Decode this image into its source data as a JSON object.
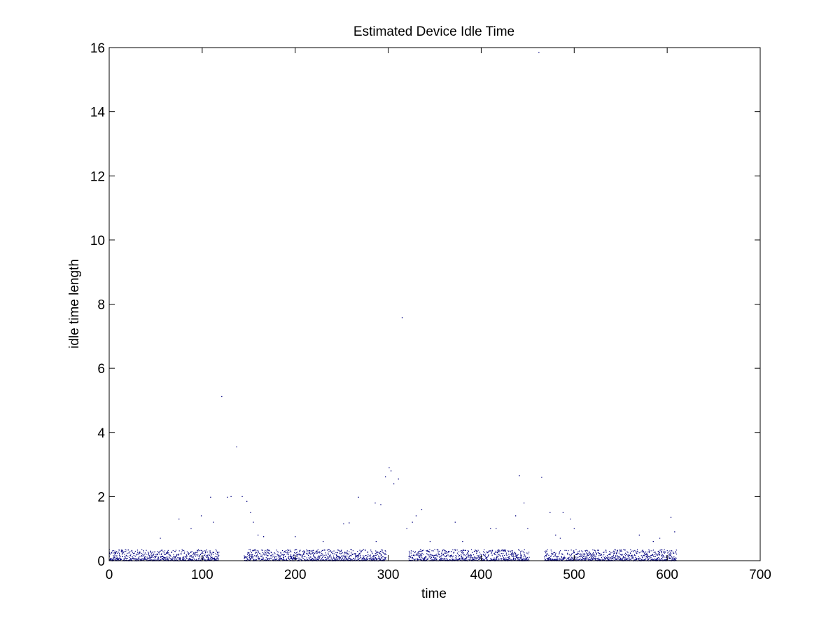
{
  "chart_data": {
    "type": "scatter",
    "title": "Estimated Device Idle Time",
    "xlabel": "time",
    "ylabel": "idle time length",
    "xlim": [
      0,
      700
    ],
    "ylim": [
      0,
      16
    ],
    "xticks": [
      0,
      100,
      200,
      300,
      400,
      500,
      600,
      700
    ],
    "yticks": [
      0,
      2,
      4,
      6,
      8,
      10,
      12,
      14,
      16
    ],
    "grid": false,
    "legend": "none",
    "marker_color": "#00007f",
    "series": [
      {
        "points": [
          [
            121,
            5.12
          ],
          [
            137,
            3.55
          ],
          [
            315,
            7.58
          ],
          [
            462,
            15.85
          ],
          [
            301,
            2.9
          ],
          [
            303,
            2.8
          ],
          [
            297,
            2.62
          ],
          [
            306,
            2.4
          ],
          [
            311,
            2.55
          ],
          [
            441,
            2.65
          ],
          [
            465,
            2.6
          ],
          [
            109,
            1.98
          ],
          [
            127,
            1.98
          ],
          [
            131,
            2.0
          ],
          [
            143,
            2.0
          ],
          [
            148,
            1.85
          ],
          [
            268,
            1.98
          ],
          [
            286,
            1.8
          ],
          [
            292,
            1.75
          ],
          [
            152,
            1.5
          ],
          [
            155,
            1.2
          ],
          [
            99,
            1.4
          ],
          [
            75,
            1.3
          ],
          [
            88,
            1.0
          ],
          [
            112,
            1.2
          ],
          [
            320,
            1.0
          ],
          [
            326,
            1.2
          ],
          [
            330,
            1.4
          ],
          [
            336,
            1.6
          ],
          [
            252,
            1.15
          ],
          [
            258,
            1.18
          ],
          [
            372,
            1.2
          ],
          [
            410,
            1.0
          ],
          [
            416,
            1.0
          ],
          [
            437,
            1.4
          ],
          [
            446,
            1.8
          ],
          [
            450,
            1.0
          ],
          [
            474,
            1.5
          ],
          [
            488,
            1.5
          ],
          [
            496,
            1.3
          ],
          [
            500,
            1.0
          ],
          [
            592,
            0.7
          ],
          [
            604,
            1.35
          ],
          [
            608,
            0.9
          ],
          [
            55,
            0.7
          ],
          [
            160,
            0.8
          ],
          [
            166,
            0.75
          ],
          [
            200,
            0.75
          ],
          [
            230,
            0.6
          ],
          [
            287,
            0.6
          ],
          [
            345,
            0.6
          ],
          [
            380,
            0.6
          ],
          [
            480,
            0.8
          ],
          [
            485,
            0.7
          ],
          [
            570,
            0.8
          ],
          [
            585,
            0.6
          ]
        ]
      }
    ],
    "dense_bands": [
      [
        0,
        118
      ],
      [
        145,
        298
      ],
      [
        322,
        452
      ],
      [
        468,
        610
      ]
    ],
    "dense_band_ymax": 0.35
  }
}
